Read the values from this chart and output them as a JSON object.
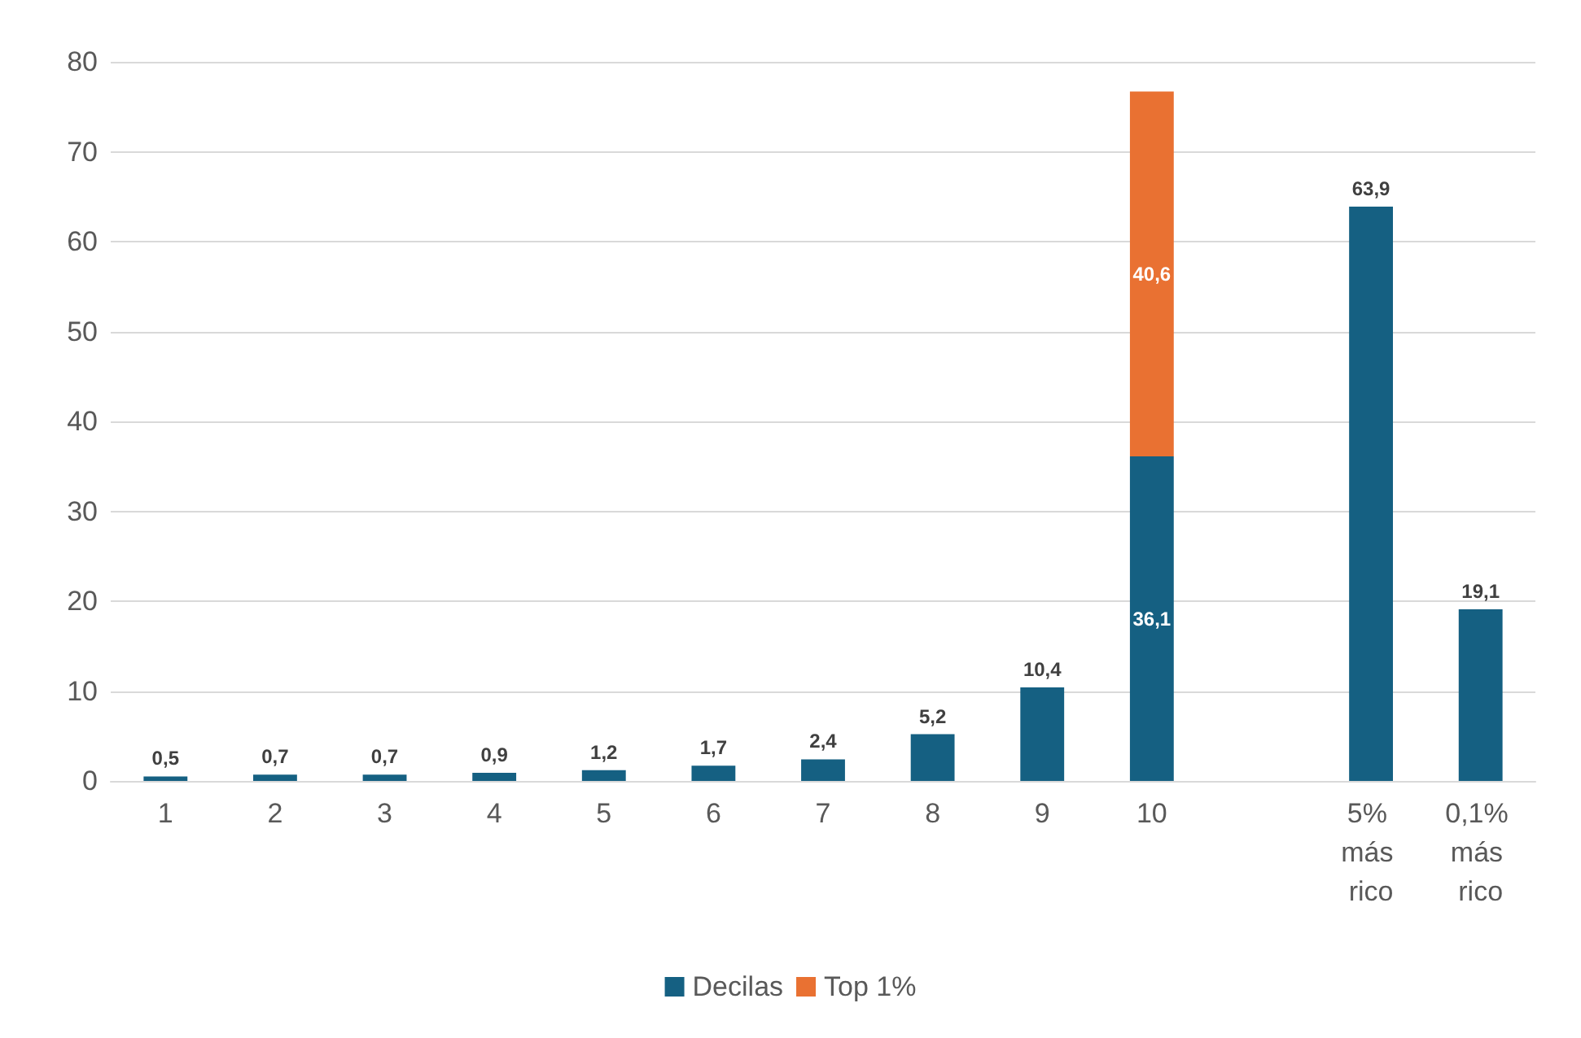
{
  "chart_data": {
    "type": "bar",
    "stacked": true,
    "categories": [
      "1",
      "2",
      "3",
      "4",
      "5",
      "6",
      "7",
      "8",
      "9",
      "10",
      null,
      "5% más rico",
      "0,1% más rico"
    ],
    "series": [
      {
        "name": "Decilas",
        "color": "#156082",
        "values": [
          0.5,
          0.7,
          0.7,
          0.9,
          1.2,
          1.7,
          2.4,
          5.2,
          10.4,
          36.1,
          null,
          63.9,
          19.1
        ],
        "value_labels": [
          "0,5",
          "0,7",
          "0,7",
          "0,9",
          "1,2",
          "1,7",
          "2,4",
          "5,2",
          "10,4",
          "36,1",
          null,
          "63,9",
          "19,1"
        ]
      },
      {
        "name": "Top 1%",
        "color": "#e97132",
        "values": [
          null,
          null,
          null,
          null,
          null,
          null,
          null,
          null,
          null,
          40.6,
          null,
          null,
          null
        ],
        "value_labels": [
          null,
          null,
          null,
          null,
          null,
          null,
          null,
          null,
          null,
          "40,6",
          null,
          null,
          null
        ]
      }
    ],
    "ylim": [
      0,
      80
    ],
    "yticks": [
      0,
      10,
      20,
      30,
      40,
      50,
      60,
      70,
      80
    ],
    "grid": "y",
    "legend": "bottom"
  }
}
